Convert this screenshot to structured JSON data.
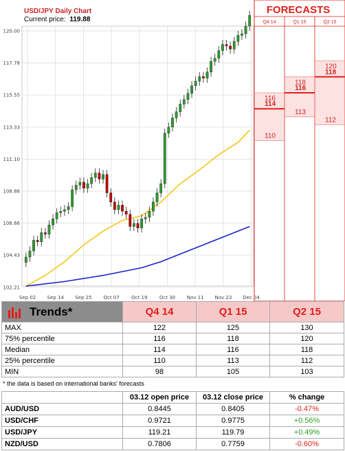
{
  "chart_data": {
    "type": "candlestick",
    "title": "USD/JPY Daily Chart",
    "current_price_label": "Current price:",
    "current_price": "119.88",
    "y_ticks": [
      "120.00",
      "117.78",
      "115.55",
      "113.33",
      "111.10",
      "108.88",
      "106.66",
      "104.43",
      "102.21"
    ],
    "ylim": [
      102.21,
      120.0
    ],
    "x_ticks": [
      "Sep 02",
      "Sep 14",
      "Sep 25",
      "Oct 07",
      "Oct 19",
      "Oct 30",
      "Nov 11",
      "Nov 23",
      "Dec 04"
    ],
    "closes": [
      104.1,
      104.5,
      105.2,
      105.1,
      105.7,
      105.6,
      106.2,
      106.6,
      107.0,
      107.1,
      107.2,
      107.4,
      108.5,
      108.8,
      109.0,
      108.6,
      108.9,
      109.3,
      109.6,
      109.2,
      109.5,
      108.3,
      107.7,
      107.2,
      107.5,
      107.1,
      106.9,
      106.1,
      106.3,
      106.0,
      106.6,
      106.7,
      107.1,
      107.7,
      108.3,
      108.9,
      112.2,
      112.6,
      113.2,
      113.6,
      114.1,
      114.4,
      114.8,
      115.3,
      115.6,
      115.9,
      115.8,
      116.2,
      116.9,
      117.1,
      117.6,
      118.0,
      117.9,
      117.7,
      118.2,
      118.6,
      118.7,
      119.2,
      119.9
    ],
    "moving_averages": [
      {
        "color": "#f5c518",
        "points": [
          [
            0,
            102.2
          ],
          [
            5,
            102.9
          ],
          [
            10,
            103.8
          ],
          [
            15,
            104.9
          ],
          [
            20,
            105.8
          ],
          [
            25,
            106.5
          ],
          [
            30,
            106.8
          ],
          [
            35,
            107.7
          ],
          [
            40,
            108.9
          ],
          [
            45,
            109.8
          ],
          [
            50,
            110.8
          ],
          [
            55,
            111.6
          ],
          [
            58,
            112.4
          ]
        ]
      },
      {
        "color": "#1a22c8",
        "points": [
          [
            0,
            102.2
          ],
          [
            10,
            102.5
          ],
          [
            20,
            102.9
          ],
          [
            30,
            103.4
          ],
          [
            35,
            103.8
          ],
          [
            40,
            104.3
          ],
          [
            45,
            104.8
          ],
          [
            50,
            105.3
          ],
          [
            55,
            105.8
          ],
          [
            58,
            106.1
          ]
        ]
      }
    ],
    "forecasts": {
      "title": "FORECASTS",
      "columns": [
        {
          "label": "Q4 14",
          "max": "122",
          "p75": "116",
          "median": "114",
          "p25": "110",
          "min": "98"
        },
        {
          "label": "Q1 15",
          "max": "125",
          "p75": "118",
          "median": "116",
          "p25": "113",
          "min": "105"
        },
        {
          "label": "Q2 15",
          "max": "130",
          "p75": "120",
          "median": "118",
          "p25": "112",
          "min": "103"
        }
      ]
    }
  },
  "trends": {
    "title": "Trends*",
    "periods": [
      "Q4 14",
      "Q1 15",
      "Q2 15"
    ],
    "rows": [
      {
        "label": "MAX",
        "values": [
          "122",
          "125",
          "130"
        ]
      },
      {
        "label": "75% percentile",
        "values": [
          "116",
          "118",
          "120"
        ]
      },
      {
        "label": "Median",
        "values": [
          "114",
          "116",
          "118"
        ]
      },
      {
        "label": "25% percentile",
        "values": [
          "110",
          "113",
          "112"
        ]
      },
      {
        "label": "MIN",
        "values": [
          "98",
          "105",
          "103"
        ]
      }
    ],
    "footnote": "* the data is based on international banks' forecasts"
  },
  "rates": {
    "headers": [
      "",
      "03.12 open price",
      "03.12 close price",
      "% change"
    ],
    "rows": [
      {
        "pair": "AUD/USD",
        "open": "0.8445",
        "close": "0.8405",
        "change": "-0.47%",
        "dir": "neg"
      },
      {
        "pair": "USD/CHF",
        "open": "0.9721",
        "close": "0.9775",
        "change": "+0.56%",
        "dir": "pos"
      },
      {
        "pair": "USD/JPY",
        "open": "119.21",
        "close": "119.79",
        "change": "+0.49%",
        "dir": "pos"
      },
      {
        "pair": "NZD/USD",
        "open": "0.7806",
        "close": "0.7759",
        "change": "-0.60%",
        "dir": "neg"
      }
    ]
  },
  "colors": {
    "bull": "#2e9a2e",
    "bear": "#c00000",
    "forecast": "#e0201a"
  }
}
